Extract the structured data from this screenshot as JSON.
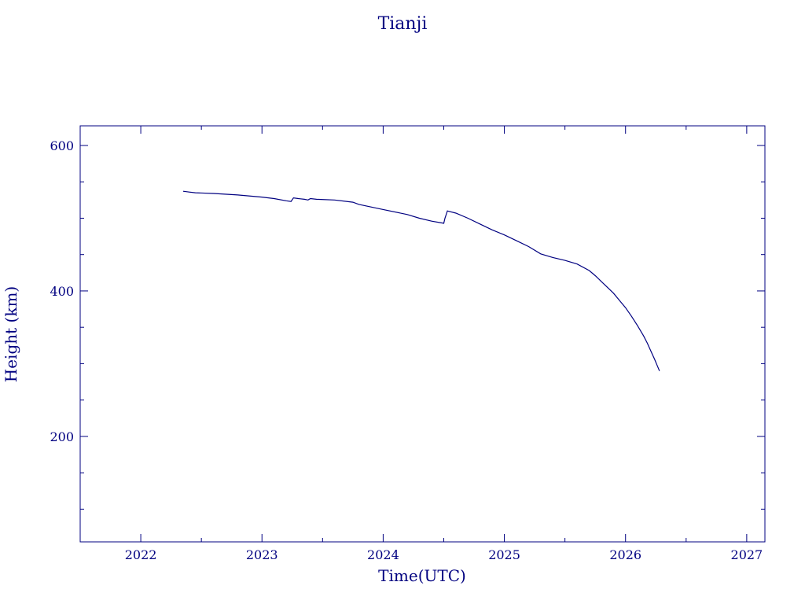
{
  "chart_data": {
    "type": "line",
    "title": "Tianji",
    "xlabel": "Time(UTC)",
    "ylabel": "Height (km)",
    "xlim": [
      2021.5,
      2027.15
    ],
    "ylim": [
      55,
      627
    ],
    "x_ticks": [
      2022,
      2023,
      2024,
      2025,
      2026,
      2027
    ],
    "x_tick_labels": [
      "2022",
      "2023",
      "2024",
      "2025",
      "2026",
      "2027"
    ],
    "y_ticks": [
      200,
      400,
      600
    ],
    "y_tick_labels": [
      "200",
      "400",
      "600"
    ],
    "y_minor_step": 50,
    "x_minor_step": 0.5,
    "grid": false,
    "color": "#000080",
    "series": [
      {
        "x": [
          2022.35,
          2022.4,
          2022.45,
          2022.6,
          2022.8,
          2023.0,
          2023.1,
          2023.2,
          2023.24,
          2023.26,
          2023.3,
          2023.35,
          2023.38,
          2023.4,
          2023.45,
          2023.6,
          2023.75,
          2023.8,
          2024.0,
          2024.2,
          2024.3,
          2024.4,
          2024.5,
          2024.51,
          2024.53,
          2024.6,
          2024.7,
          2024.8,
          2024.9,
          2025.0,
          2025.1,
          2025.2,
          2025.3,
          2025.4,
          2025.5,
          2025.6,
          2025.7,
          2025.75,
          2025.8,
          2025.85,
          2025.9,
          2025.95,
          2026.0,
          2026.05,
          2026.1,
          2026.15,
          2026.18,
          2026.21,
          2026.24,
          2026.26,
          2026.28
        ],
        "y": [
          537,
          536,
          535,
          534,
          532,
          529,
          527,
          524,
          523,
          528,
          527,
          526,
          525,
          527,
          526,
          525,
          522,
          519,
          512,
          505,
          500,
          496,
          493,
          500,
          510,
          507,
          500,
          492,
          484,
          477,
          469,
          461,
          451,
          446,
          442,
          437,
          428,
          421,
          413,
          405,
          397,
          387,
          377,
          365,
          352,
          338,
          328,
          317,
          306,
          298,
          290
        ]
      }
    ]
  }
}
